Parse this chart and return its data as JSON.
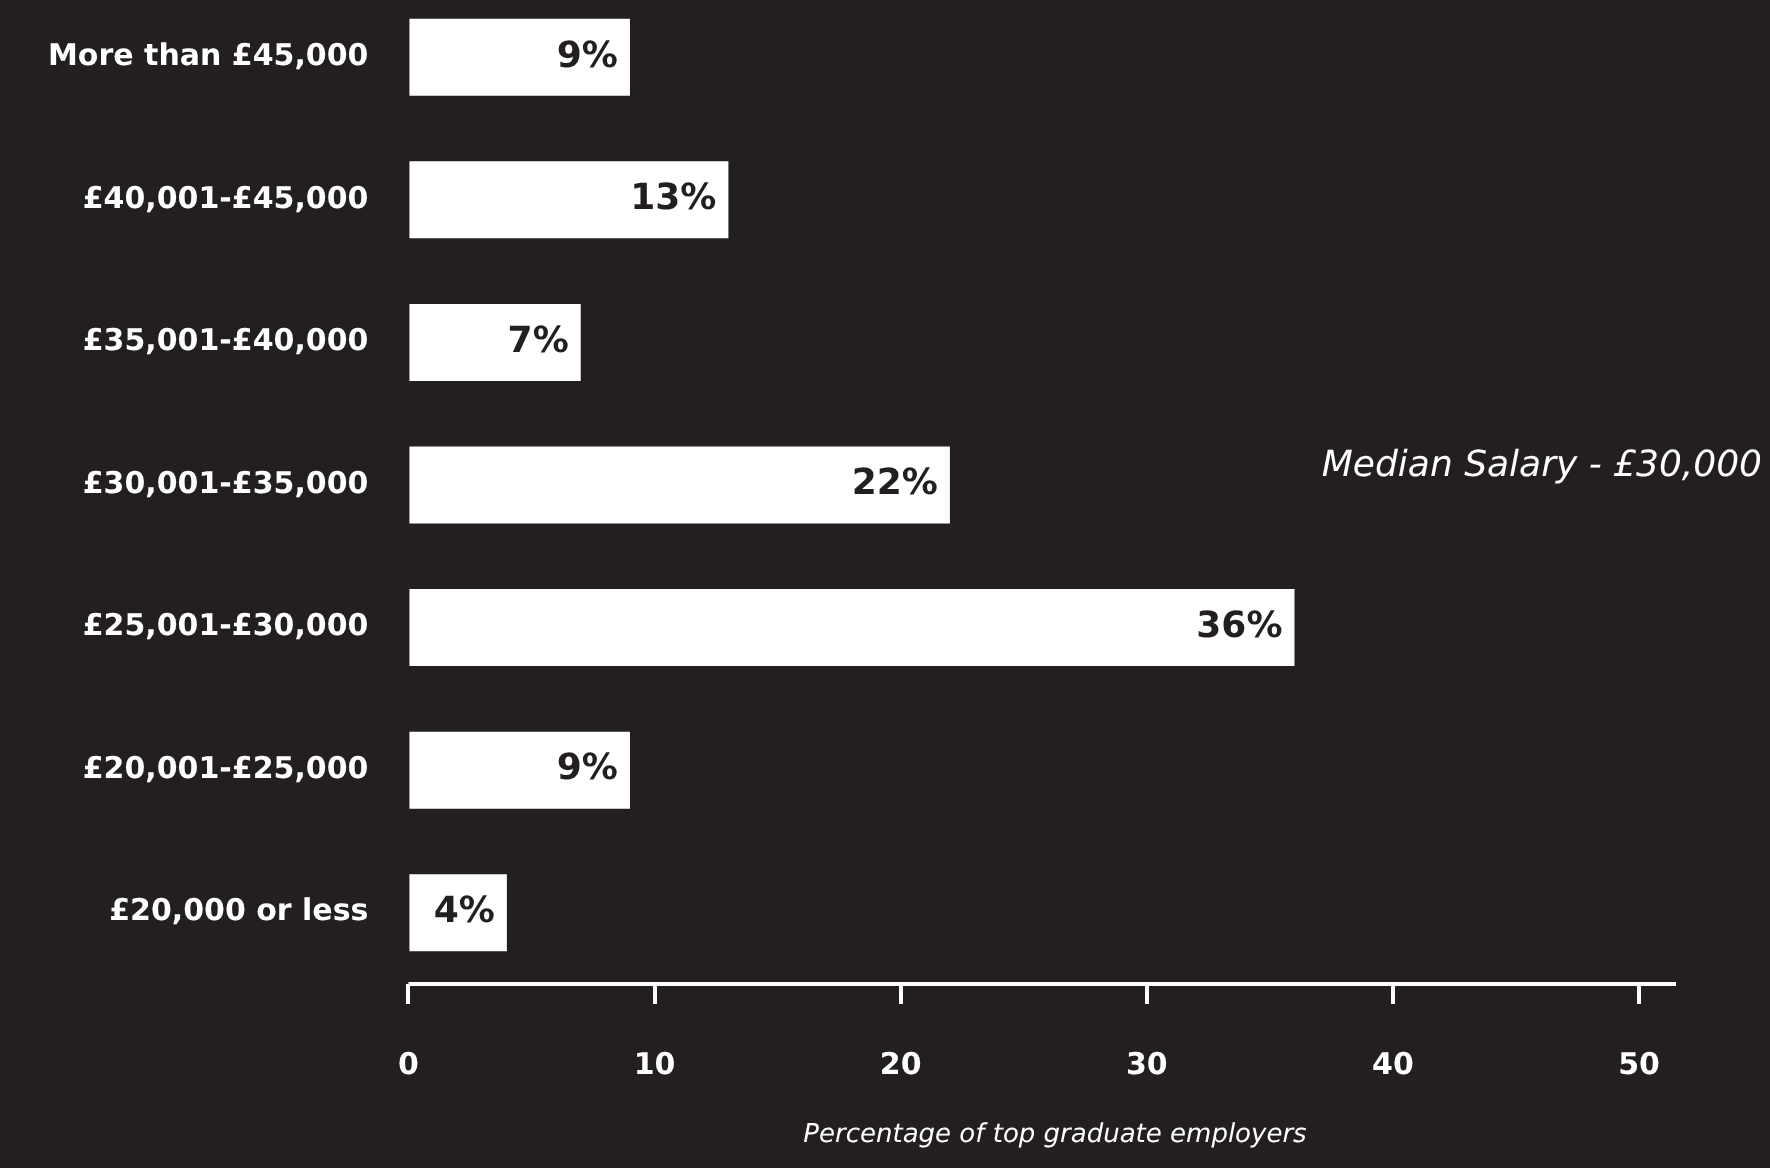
{
  "chart_data": {
    "type": "bar",
    "orientation": "horizontal",
    "xlabel": "Percentage of top graduate employers",
    "categories": [
      "More than £45,000",
      "£40,001-£45,000",
      "£35,001-£40,000",
      "£30,001-£35,000",
      "£25,001-£30,000",
      "£20,001-£25,000",
      "£20,000 or less"
    ],
    "values": [
      9,
      13,
      7,
      22,
      36,
      9,
      4
    ],
    "value_labels": [
      "9%",
      "13%",
      "7%",
      "22%",
      "36%",
      "9%",
      "4%"
    ],
    "color": "#ffffff",
    "xlim": [
      0,
      51.5
    ],
    "xticks": [
      0,
      10,
      20,
      30,
      40,
      50
    ],
    "grid": false,
    "annotations": [
      "Median Salary - £30,000"
    ]
  }
}
